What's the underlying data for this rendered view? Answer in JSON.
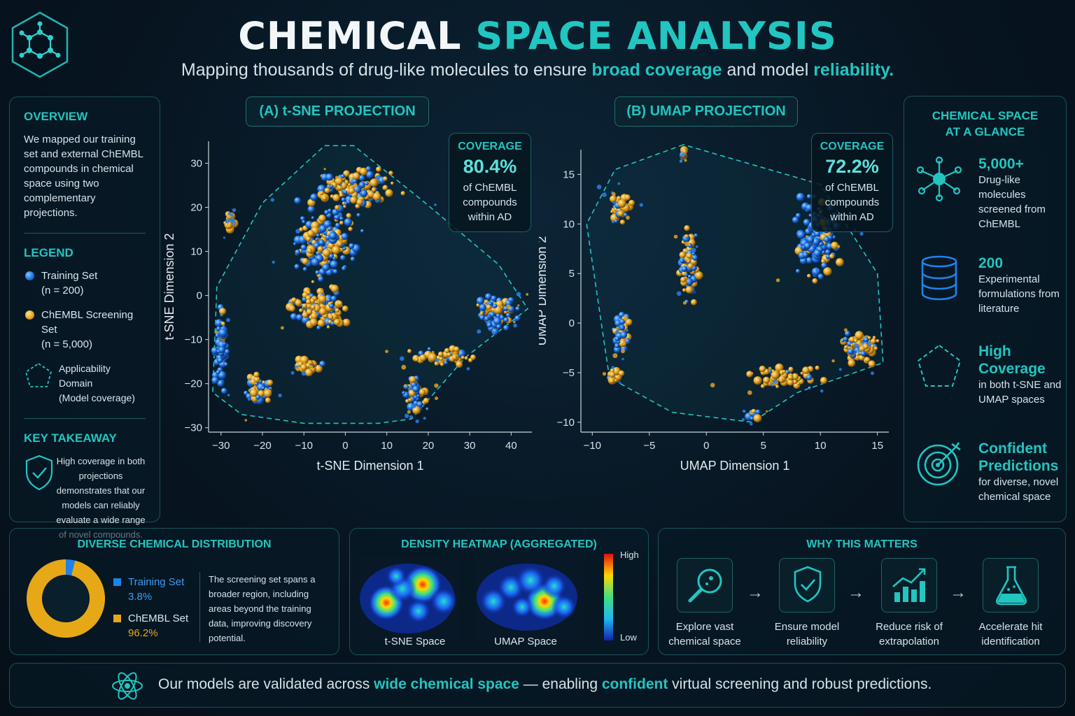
{
  "header": {
    "title_part1": "CHEMICAL ",
    "title_part2": "SPACE ANALYSIS",
    "subtitle_a": "Mapping thousands of drug-like molecules to ensure ",
    "subtitle_b": "broad coverage",
    "subtitle_c": " and model ",
    "subtitle_d": "reliability."
  },
  "overview": {
    "heading": "OVERVIEW",
    "text": "We mapped our training set and external ChEMBL compounds in chemical space using two complementary projections.",
    "legend_heading": "LEGEND",
    "legend": [
      {
        "label": "Training Set",
        "count": "(n = 200)",
        "color": "#1a6fe0"
      },
      {
        "label": "ChEMBL Screening Set",
        "count": "(n = 5,000)",
        "color": "#e0a21d"
      }
    ],
    "ad_label": "Applicability Domain",
    "ad_sub": "(Model coverage)",
    "takeaway_heading": "KEY TAKEAWAY",
    "takeaway_text": "High coverage in both projections demonstrates that our models can reliably evaluate a wide range of novel compounds."
  },
  "chart_data": [
    {
      "type": "scatter",
      "title": "(A) t-SNE PROJECTION",
      "xlabel": "t-SNE Dimension 1",
      "ylabel": "t-SNE Dimension 2",
      "xlim": [
        -33,
        45
      ],
      "ylim": [
        -31,
        35
      ],
      "xticks": [
        -30,
        -20,
        -10,
        0,
        10,
        20,
        30,
        40
      ],
      "yticks": [
        -30,
        -20,
        -10,
        0,
        10,
        20,
        30
      ],
      "coverage_label": "COVERAGE",
      "coverage_value": "80.4%",
      "coverage_desc": [
        "of ChEMBL",
        "compounds",
        "within AD"
      ],
      "hull": [
        [
          -5,
          34
        ],
        [
          2,
          34
        ],
        [
          18,
          22
        ],
        [
          37,
          7
        ],
        [
          44,
          -3
        ],
        [
          29,
          -14
        ],
        [
          16,
          -28
        ],
        [
          8,
          -29
        ],
        [
          -10,
          -29
        ],
        [
          -25,
          -27
        ],
        [
          -32,
          -22
        ],
        [
          -31,
          2
        ],
        [
          -20,
          21
        ]
      ],
      "clusters": [
        {
          "cx": -5,
          "cy": 12,
          "rx": 10,
          "ry": 11,
          "n": 170,
          "blue": 0.55
        },
        {
          "cx": -6,
          "cy": -3,
          "rx": 9,
          "ry": 6,
          "n": 120,
          "blue": 0.3
        },
        {
          "cx": 2,
          "cy": 24,
          "rx": 13,
          "ry": 6,
          "n": 130,
          "blue": 0.35
        },
        {
          "cx": -28,
          "cy": 17,
          "rx": 1.5,
          "ry": 2.5,
          "n": 16,
          "blue": 0.0
        },
        {
          "cx": -30,
          "cy": -12,
          "rx": 2,
          "ry": 12,
          "n": 70,
          "blue": 0.85
        },
        {
          "cx": -21,
          "cy": -21,
          "rx": 4,
          "ry": 4,
          "n": 70,
          "blue": 0.35
        },
        {
          "cx": 36,
          "cy": -4,
          "rx": 6,
          "ry": 5,
          "n": 90,
          "blue": 0.55
        },
        {
          "cx": 24,
          "cy": -14,
          "rx": 10,
          "ry": 2.2,
          "n": 40,
          "blue": 0.15
        },
        {
          "cx": 17,
          "cy": -22,
          "rx": 3.5,
          "ry": 6,
          "n": 55,
          "blue": 0.65
        },
        {
          "cx": -9,
          "cy": -16,
          "rx": 4,
          "ry": 2,
          "n": 30,
          "blue": 0.25
        }
      ]
    },
    {
      "type": "scatter",
      "title": "(B) UMAP PROJECTION",
      "xlabel": "UMAP Dimension 1",
      "ylabel": "UMAP Dimension 2",
      "xlim": [
        -11,
        16
      ],
      "ylim": [
        -11,
        17.5
      ],
      "xticks": [
        -10,
        -5,
        0,
        5,
        10,
        15
      ],
      "yticks": [
        -10,
        -5,
        0,
        5,
        10,
        15
      ],
      "coverage_label": "COVERAGE",
      "coverage_value": "72.2%",
      "coverage_desc": [
        "of ChEMBL",
        "compounds",
        "within AD"
      ],
      "hull": [
        [
          -2,
          18
        ],
        [
          -8,
          15.5
        ],
        [
          -10.5,
          10
        ],
        [
          -8.5,
          -5.5
        ],
        [
          -3,
          -9
        ],
        [
          4,
          -10
        ],
        [
          8,
          -7
        ],
        [
          15.5,
          -4
        ],
        [
          15,
          5
        ],
        [
          10,
          14
        ]
      ],
      "clusters": [
        {
          "cx": -7.5,
          "cy": 11.5,
          "rx": 1.2,
          "ry": 2,
          "n": 40,
          "blue": 0.3
        },
        {
          "cx": -2,
          "cy": 17,
          "rx": 0.3,
          "ry": 0.8,
          "n": 10,
          "blue": 0.1
        },
        {
          "cx": -1.5,
          "cy": 6,
          "rx": 1,
          "ry": 4.5,
          "n": 80,
          "blue": 0.55
        },
        {
          "cx": -7.5,
          "cy": -1,
          "rx": 0.8,
          "ry": 3,
          "n": 45,
          "blue": 0.7
        },
        {
          "cx": -8,
          "cy": -5.3,
          "rx": 0.7,
          "ry": 1,
          "n": 20,
          "blue": 0.1
        },
        {
          "cx": 9.5,
          "cy": 8.5,
          "rx": 2.5,
          "ry": 5,
          "n": 150,
          "blue": 0.8
        },
        {
          "cx": 13.5,
          "cy": -2.5,
          "rx": 2,
          "ry": 2,
          "n": 90,
          "blue": 0.35
        },
        {
          "cx": 7,
          "cy": -5.5,
          "rx": 5,
          "ry": 1.5,
          "n": 55,
          "blue": 0.15
        },
        {
          "cx": 4,
          "cy": -9.3,
          "rx": 0.8,
          "ry": 0.7,
          "n": 18,
          "blue": 0.5
        }
      ]
    },
    {
      "type": "pie",
      "title": "DIVERSE CHEMICAL DISTRIBUTION",
      "slices": [
        {
          "name": "Training Set",
          "label": "3.8%",
          "value": 3.8,
          "color": "#1f82e8"
        },
        {
          "name": "ChEMBL Set",
          "label": "96.2%",
          "value": 96.2,
          "color": "#e6a817"
        }
      ]
    },
    {
      "type": "heatmap",
      "title": "DENSITY HEATMAP (AGGREGATED)",
      "panels": [
        "t-SNE Space",
        "UMAP Space"
      ],
      "scale_high": "High",
      "scale_low": "Low"
    }
  ],
  "distribution": {
    "text": "The screening set spans a broader region, including areas beyond the training data, improving discovery potential."
  },
  "glance": {
    "heading_1": "CHEMICAL SPACE",
    "heading_2": "AT A GLANCE",
    "items": [
      {
        "value": "5,000+",
        "desc": "Drug-like molecules screened from ChEMBL",
        "icon": "network-icon"
      },
      {
        "value": "200",
        "desc": "Experimental formulations from literature",
        "icon": "database-icon"
      },
      {
        "value": "High Coverage",
        "desc": "in both t-SNE and UMAP spaces",
        "icon": "pentagon-icon"
      },
      {
        "value": "Confident Predictions",
        "desc": "for diverse, novel chemical space",
        "icon": "target-icon"
      }
    ]
  },
  "why": {
    "heading": "WHY THIS MATTERS",
    "steps": [
      {
        "label": "Explore vast chemical space",
        "icon": "magnifier-icon"
      },
      {
        "label": "Ensure model reliability",
        "icon": "shield-check-icon"
      },
      {
        "label": "Reduce risk of extrapolation",
        "icon": "bar-chart-icon"
      },
      {
        "label": "Accelerate hit identification",
        "icon": "flask-icon"
      }
    ]
  },
  "footer": {
    "a": "Our models are validated across ",
    "b": "wide chemical space",
    "c": " — enabling ",
    "d": "confident",
    "e": " virtual screening and robust predictions."
  }
}
